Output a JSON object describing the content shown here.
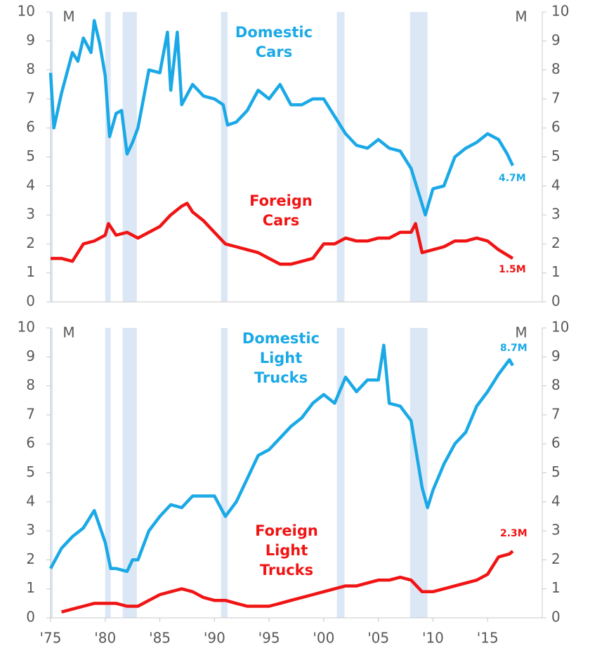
{
  "chart_data": [
    {
      "type": "line",
      "y_unit": "M",
      "xlim": [
        1975,
        2020
      ],
      "ylim": [
        0,
        10
      ],
      "yticks": [
        0,
        1,
        2,
        3,
        4,
        5,
        6,
        7,
        8,
        9,
        10
      ],
      "recessions": [
        [
          1975,
          1975.2
        ],
        [
          1980,
          1980.5
        ],
        [
          1981.6,
          1982.9
        ],
        [
          1990.6,
          1991.2
        ],
        [
          2001.2,
          2001.9
        ],
        [
          2007.9,
          2009.5
        ]
      ],
      "recession_color": "#dce7f6",
      "series": [
        {
          "name": "Domestic Cars",
          "color": "#1aa9e6",
          "end_label": "4.7M",
          "x": [
            1975,
            1975.3,
            1976,
            1977,
            1977.5,
            1978,
            1978.7,
            1979,
            1979.5,
            1980,
            1980.4,
            1981,
            1981.5,
            1982,
            1982.5,
            1983,
            1984,
            1985,
            1985.7,
            1986,
            1986.6,
            1987,
            1988,
            1989,
            1990,
            1990.8,
            1991.2,
            1992,
            1993,
            1994,
            1995,
            1996,
            1997,
            1998,
            1999,
            2000,
            2001,
            2002,
            2003,
            2004,
            2005,
            2006,
            2007,
            2008,
            2009.3,
            2010,
            2011,
            2012,
            2013,
            2014,
            2015,
            2016,
            2016.8,
            2017.3
          ],
          "values": [
            7.9,
            6.0,
            7.2,
            8.6,
            8.3,
            9.1,
            8.6,
            9.7,
            8.9,
            7.8,
            5.7,
            6.5,
            6.6,
            5.1,
            5.5,
            6.0,
            8.0,
            7.9,
            9.3,
            7.3,
            9.3,
            6.8,
            7.5,
            7.1,
            7.0,
            6.8,
            6.1,
            6.2,
            6.6,
            7.3,
            7.0,
            7.5,
            6.8,
            6.8,
            7.0,
            7.0,
            6.4,
            5.8,
            5.4,
            5.3,
            5.6,
            5.3,
            5.2,
            4.6,
            3.0,
            3.9,
            4.0,
            5.0,
            5.3,
            5.5,
            5.8,
            5.6,
            5.1,
            4.7
          ]
        },
        {
          "name": "Foreign Cars",
          "color": "#f01414",
          "end_label": "1.5M",
          "x": [
            1975,
            1976,
            1977,
            1978,
            1979,
            1980,
            1980.3,
            1981,
            1982,
            1983,
            1984,
            1985,
            1986,
            1987,
            1987.5,
            1988,
            1989,
            1990,
            1991,
            1992,
            1993,
            1994,
            1995,
            1996,
            1997,
            1998,
            1999,
            2000,
            2001,
            2002,
            2003,
            2004,
            2005,
            2006,
            2007,
            2008,
            2008.4,
            2009,
            2010,
            2011,
            2012,
            2013,
            2014,
            2015,
            2016,
            2017.3
          ],
          "values": [
            1.5,
            1.5,
            1.4,
            2.0,
            2.1,
            2.3,
            2.7,
            2.3,
            2.4,
            2.2,
            2.4,
            2.6,
            3.0,
            3.3,
            3.4,
            3.1,
            2.8,
            2.4,
            2.0,
            1.9,
            1.8,
            1.7,
            1.5,
            1.3,
            1.3,
            1.4,
            1.5,
            2.0,
            2.0,
            2.2,
            2.1,
            2.1,
            2.2,
            2.2,
            2.4,
            2.4,
            2.7,
            1.7,
            1.8,
            1.9,
            2.1,
            2.1,
            2.2,
            2.1,
            1.8,
            1.5
          ]
        }
      ]
    },
    {
      "type": "line",
      "y_unit": "M",
      "xlim": [
        1975,
        2020
      ],
      "ylim": [
        0,
        10
      ],
      "yticks": [
        0,
        1,
        2,
        3,
        4,
        5,
        6,
        7,
        8,
        9,
        10
      ],
      "xticks": [
        {
          "value": 1975,
          "label": "'75"
        },
        {
          "value": 1980,
          "label": "'80"
        },
        {
          "value": 1985,
          "label": "'85"
        },
        {
          "value": 1990,
          "label": "'90"
        },
        {
          "value": 1995,
          "label": "'95"
        },
        {
          "value": 2000,
          "label": "'00"
        },
        {
          "value": 2005,
          "label": "'05"
        },
        {
          "value": 2010,
          "label": "'10"
        },
        {
          "value": 2015,
          "label": "'15"
        }
      ],
      "recessions": [
        [
          1975,
          1975.2
        ],
        [
          1980,
          1980.5
        ],
        [
          1981.6,
          1982.9
        ],
        [
          1990.6,
          1991.2
        ],
        [
          2001.2,
          2001.9
        ],
        [
          2007.9,
          2009.5
        ]
      ],
      "recession_color": "#dce7f6",
      "series": [
        {
          "name": "Domestic Light Trucks",
          "color": "#1aa9e6",
          "end_label": "8.7M",
          "x": [
            1975,
            1976,
            1977,
            1978,
            1979,
            1980,
            1980.5,
            1981,
            1982,
            1982.5,
            1983,
            1984,
            1985,
            1986,
            1987,
            1988,
            1989,
            1990,
            1991,
            1992,
            1993,
            1994,
            1995,
            1996,
            1997,
            1998,
            1999,
            2000,
            2001,
            2002,
            2003,
            2004,
            2005,
            2005.5,
            2006,
            2007,
            2008,
            2009,
            2009.5,
            2010,
            2011,
            2012,
            2013,
            2014,
            2015,
            2016,
            2017,
            2017.3
          ],
          "values": [
            1.7,
            2.4,
            2.8,
            3.1,
            3.7,
            2.6,
            1.7,
            1.7,
            1.6,
            2.0,
            2.0,
            3.0,
            3.5,
            3.9,
            3.8,
            4.2,
            4.2,
            4.2,
            3.5,
            4.0,
            4.8,
            5.6,
            5.8,
            6.2,
            6.6,
            6.9,
            7.4,
            7.7,
            7.4,
            8.3,
            7.8,
            8.2,
            8.2,
            9.4,
            7.4,
            7.3,
            6.8,
            4.5,
            3.8,
            4.4,
            5.3,
            6.0,
            6.4,
            7.3,
            7.8,
            8.4,
            8.9,
            8.7
          ]
        },
        {
          "name": "Foreign Light Trucks",
          "color": "#f01414",
          "end_label": "2.3M",
          "x": [
            1976,
            1977,
            1978,
            1979,
            1980,
            1981,
            1982,
            1983,
            1984,
            1985,
            1986,
            1987,
            1988,
            1989,
            1990,
            1991,
            1992,
            1993,
            1994,
            1995,
            1996,
            1997,
            1998,
            1999,
            2000,
            2001,
            2002,
            2003,
            2004,
            2005,
            2006,
            2007,
            2008,
            2009,
            2010,
            2011,
            2012,
            2013,
            2014,
            2015,
            2016,
            2017,
            2017.3
          ],
          "values": [
            0.2,
            0.3,
            0.4,
            0.5,
            0.5,
            0.5,
            0.4,
            0.4,
            0.6,
            0.8,
            0.9,
            1.0,
            0.9,
            0.7,
            0.6,
            0.6,
            0.5,
            0.4,
            0.4,
            0.4,
            0.5,
            0.6,
            0.7,
            0.8,
            0.9,
            1.0,
            1.1,
            1.1,
            1.2,
            1.3,
            1.3,
            1.4,
            1.3,
            0.9,
            0.9,
            1.0,
            1.1,
            1.2,
            1.3,
            1.5,
            2.1,
            2.2,
            2.3
          ]
        }
      ]
    }
  ]
}
